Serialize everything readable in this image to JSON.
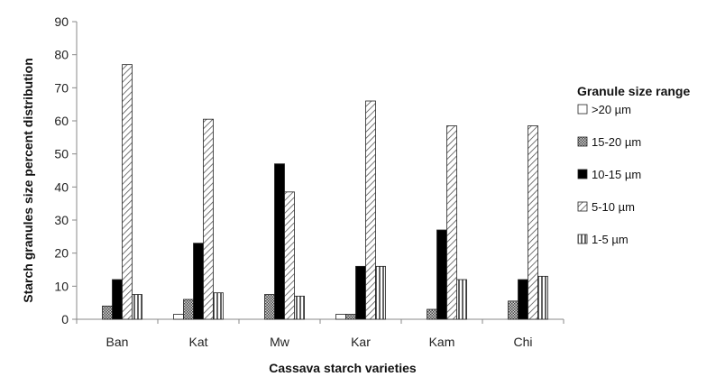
{
  "chart_data": {
    "type": "bar",
    "categories": [
      "Ban",
      "Kat",
      "Mw",
      "Kar",
      "Kam",
      "Chi"
    ],
    "series": [
      {
        "name": ">20 µm",
        "values": [
          0,
          1.5,
          0,
          1.5,
          0,
          0
        ],
        "pattern": "white"
      },
      {
        "name": "15-20 µm",
        "values": [
          4,
          6,
          7.5,
          1.5,
          3,
          5.5
        ],
        "pattern": "crosshatch"
      },
      {
        "name": "10-15 µm",
        "values": [
          12,
          23,
          47,
          16,
          27,
          12
        ],
        "pattern": "black"
      },
      {
        "name": "5-10 µm",
        "values": [
          77,
          60.5,
          38.5,
          66,
          58.5,
          58.5
        ],
        "pattern": "diagonal"
      },
      {
        "name": "1-5 µm",
        "values": [
          7.5,
          8,
          7,
          16,
          12,
          13
        ],
        "pattern": "vertical"
      }
    ],
    "title": "",
    "xlabel": "Cassava  starch varieties",
    "ylabel": "Starch granules size percent distribution",
    "ylim": [
      0,
      90
    ],
    "yticks": [
      0,
      10,
      20,
      30,
      40,
      50,
      60,
      70,
      80,
      90
    ],
    "legend_title": "Granule size range",
    "legend_position": "right",
    "grid": false
  }
}
